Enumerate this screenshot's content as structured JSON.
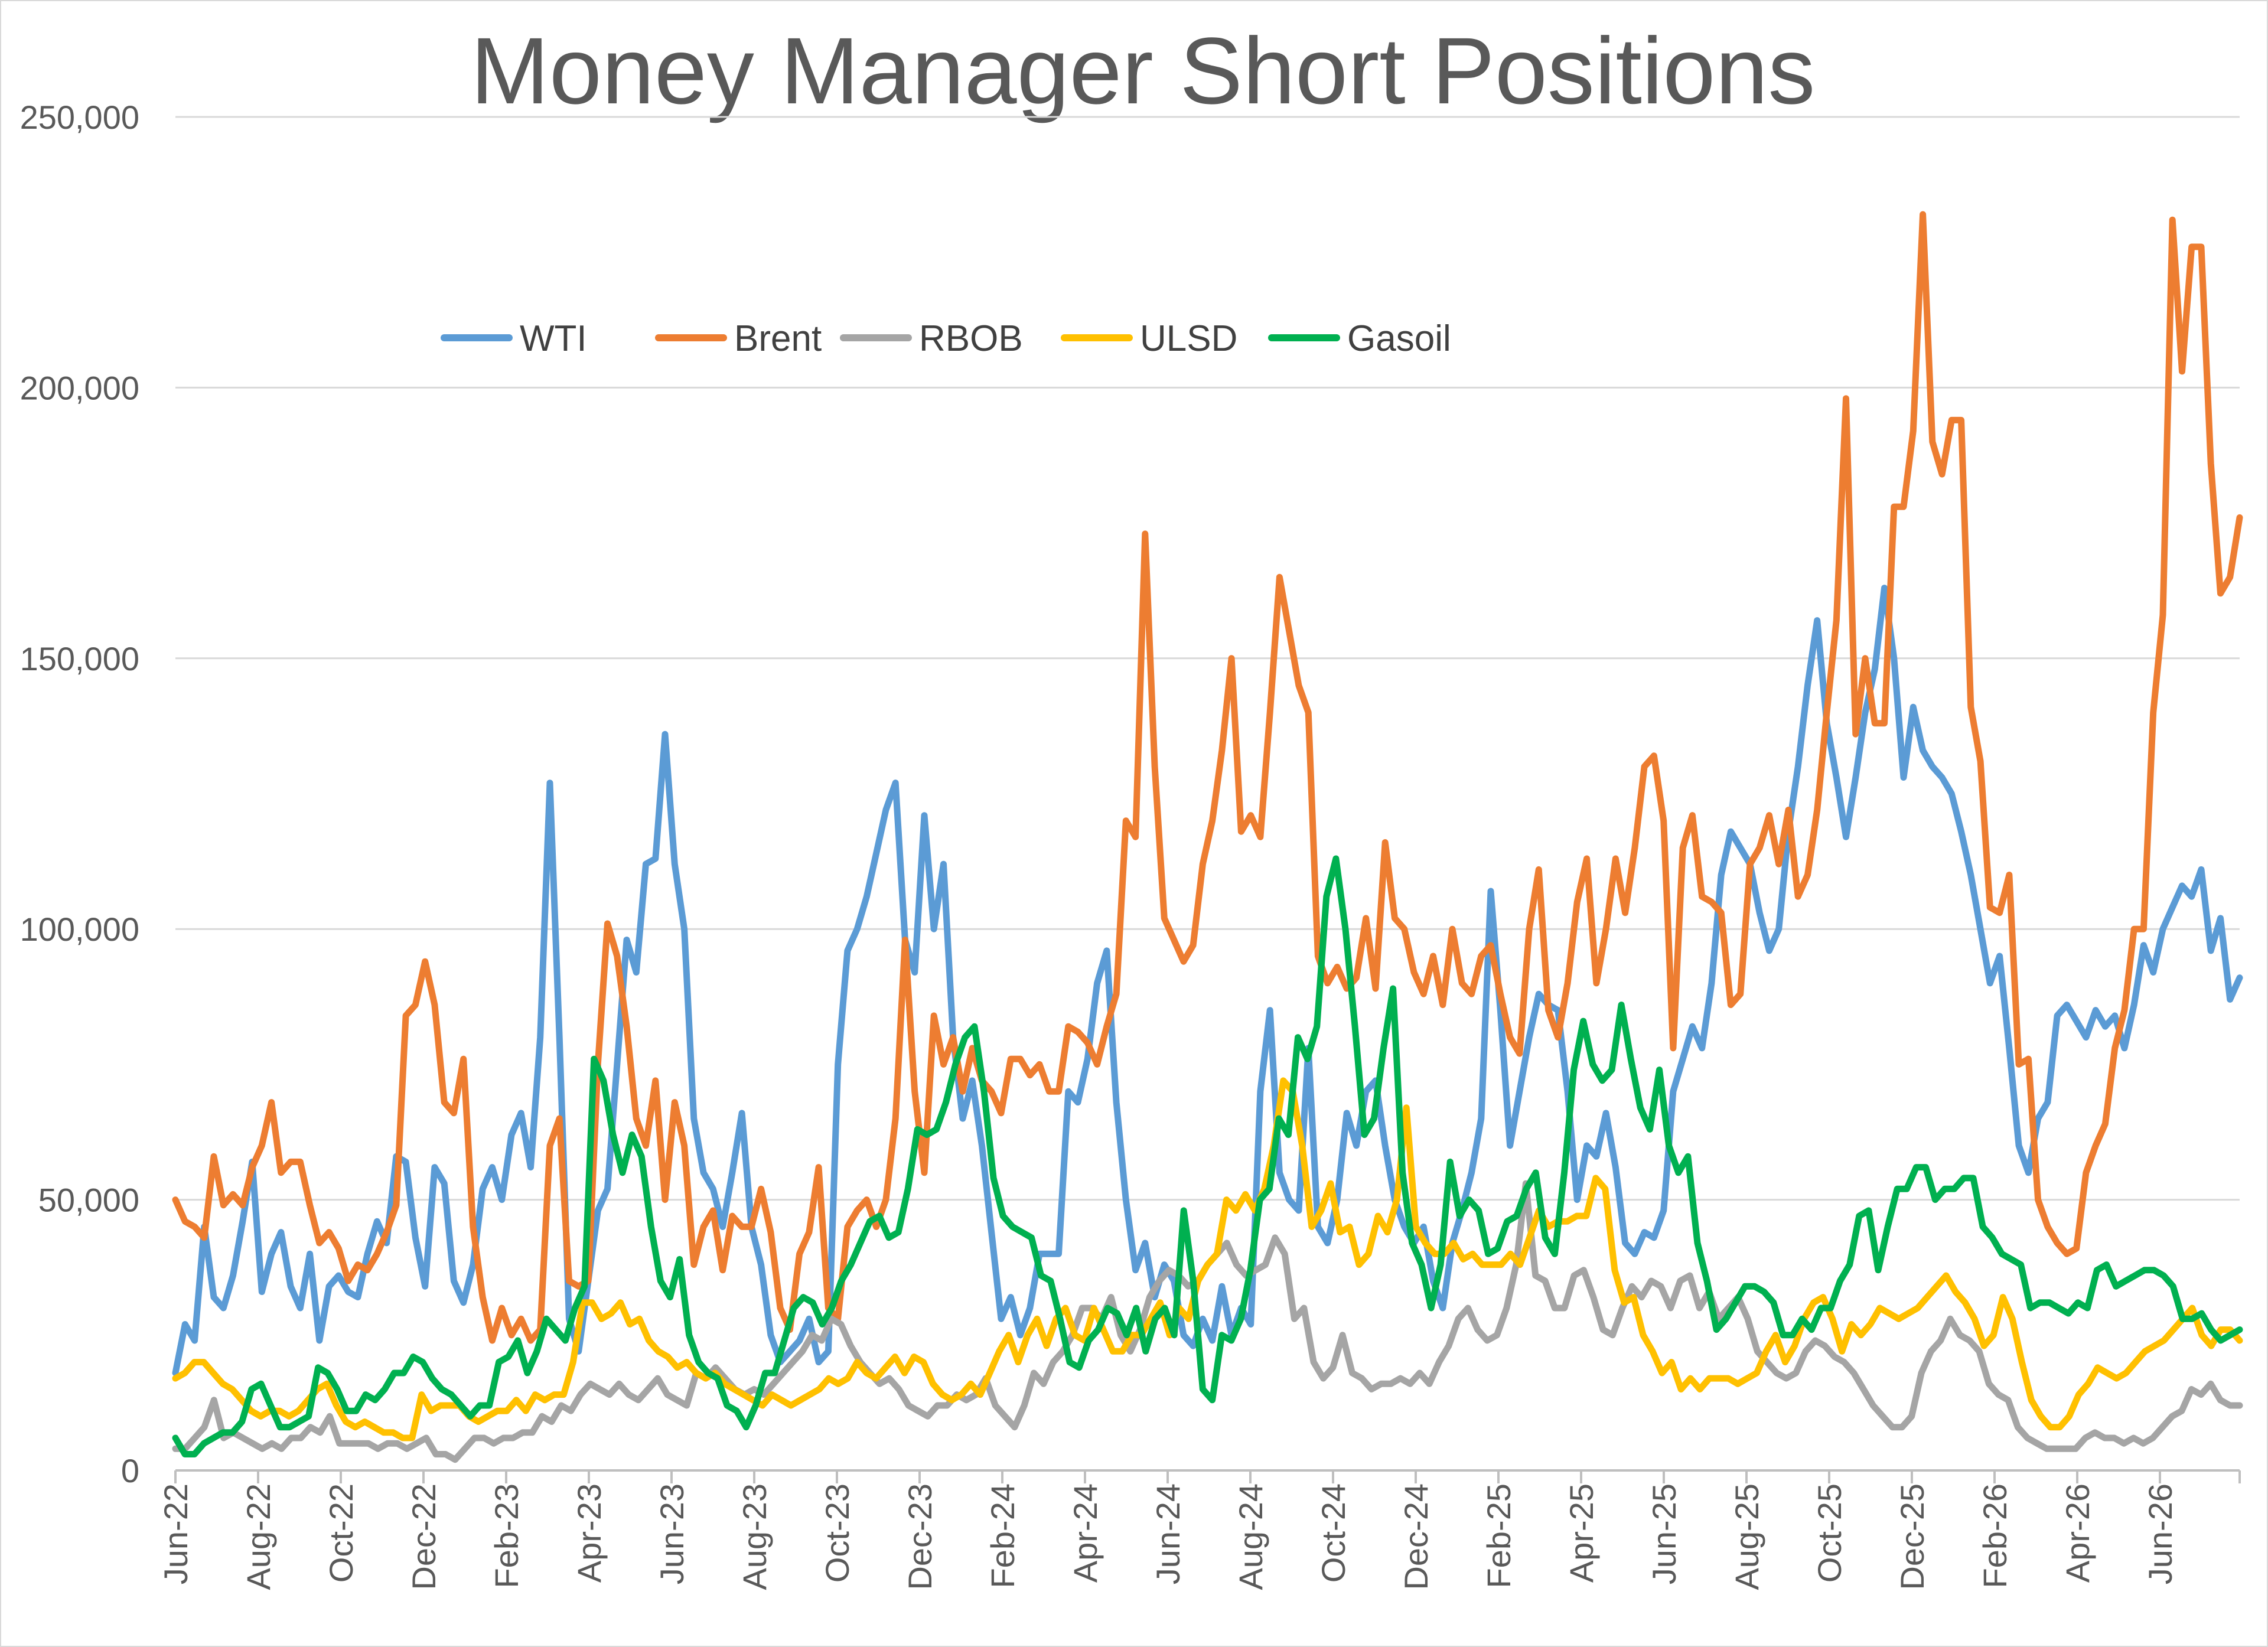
{
  "chart_data": {
    "type": "line",
    "title": "Money Manager Short Positions",
    "xlabel": "",
    "ylabel": "",
    "ylim": [
      0,
      250000
    ],
    "yticks": [
      0,
      50000,
      100000,
      150000,
      200000,
      250000
    ],
    "ytick_labels": [
      "0",
      "50,000",
      "100,000",
      "150,000",
      "200,000",
      "250,000"
    ],
    "x_range": [
      "2022-06",
      "2026-08"
    ],
    "x_tick_labels": [
      "Jun-22",
      "Aug-22",
      "Oct-22",
      "Dec-22",
      "Feb-23",
      "Apr-23",
      "Jun-23",
      "Aug-23",
      "Oct-23",
      "Dec-23",
      "Feb-24",
      "Apr-24",
      "Jun-24",
      "Aug-24",
      "Oct-24",
      "Dec-24",
      "Feb-25",
      "Apr-25",
      "Jun-25",
      "Aug-25",
      "Oct-25",
      "Dec-25",
      "Feb-26",
      "Apr-26",
      "Jun-26"
    ],
    "grid": true,
    "legend_position": "top-left",
    "series": [
      {
        "name": "WTI",
        "color": "#5b9bd5",
        "values": [
          18000,
          27000,
          24000,
          45000,
          32000,
          30000,
          36000,
          46000,
          57000,
          33000,
          40000,
          44000,
          34000,
          30000,
          40000,
          24000,
          34000,
          36000,
          33000,
          32000,
          40000,
          46000,
          42000,
          58000,
          57000,
          43000,
          34000,
          56000,
          53000,
          35000,
          31000,
          38000,
          52000,
          56000,
          50000,
          62000,
          66000,
          56000,
          80000,
          127000,
          80000,
          28000,
          22000,
          35000,
          48000,
          52000,
          75000,
          98000,
          92000,
          112000,
          113000,
          136000,
          112000,
          100000,
          65000,
          55000,
          52000,
          45000,
          55000,
          66000,
          45000,
          38000,
          25000,
          20000,
          22000,
          24000,
          28000,
          20000,
          22000,
          75000,
          96000,
          100000,
          106000,
          114000,
          122000,
          127000,
          98000,
          92000,
          121000,
          100000,
          112000,
          80000,
          65000,
          72000,
          60000,
          44000,
          28000,
          32000,
          25000,
          30000,
          40000,
          40000,
          40000,
          70000,
          68000,
          76000,
          90000,
          96000,
          68000,
          50000,
          37000,
          42000,
          32000,
          38000,
          35000,
          25000,
          23000,
          28000,
          24000,
          34000,
          25000,
          30000,
          27000,
          70000,
          85000,
          55000,
          50000,
          48000,
          78000,
          45000,
          42000,
          50000,
          66000,
          60000,
          70000,
          72000,
          60000,
          50000,
          45000,
          42000,
          45000,
          35000,
          30000,
          42000,
          48000,
          55000,
          65000,
          107000,
          85000,
          60000,
          70000,
          80000,
          88000,
          86000,
          85000,
          70000,
          50000,
          60000,
          58000,
          66000,
          56000,
          42000,
          40000,
          44000,
          43000,
          48000,
          70000,
          76000,
          82000,
          78000,
          90000,
          110000,
          118000,
          115000,
          112000,
          103000,
          96000,
          100000,
          118000,
          130000,
          145000,
          157000,
          138000,
          128000,
          117000,
          128000,
          140000,
          148000,
          163000,
          150000,
          128000,
          141000,
          133000,
          130000,
          128000,
          125000,
          118000,
          110000,
          100000,
          90000,
          95000,
          78000,
          60000,
          55000,
          65000,
          68000,
          84000,
          86000,
          83000,
          80000,
          85000,
          82000,
          84000,
          78000,
          86000,
          97000,
          92000,
          100000,
          104000,
          108000,
          106000,
          111000,
          96000,
          102000,
          87000,
          91000
        ]
      },
      {
        "name": "Brent",
        "color": "#ed7d31",
        "values": [
          50000,
          46000,
          45000,
          43000,
          58000,
          49000,
          51000,
          49000,
          56000,
          60000,
          68000,
          55000,
          57000,
          57000,
          49000,
          42000,
          44000,
          41000,
          35000,
          38000,
          37000,
          40000,
          44000,
          49000,
          84000,
          86000,
          94000,
          86000,
          68000,
          66000,
          76000,
          45000,
          32000,
          24000,
          30000,
          25000,
          28000,
          24000,
          26000,
          60000,
          65000,
          35000,
          34000,
          35000,
          75000,
          101000,
          95000,
          82000,
          65000,
          60000,
          72000,
          50000,
          68000,
          60000,
          38000,
          45000,
          48000,
          37000,
          47000,
          45000,
          45000,
          52000,
          44000,
          30000,
          26000,
          40000,
          44000,
          56000,
          30000,
          28000,
          45000,
          48000,
          50000,
          45000,
          50000,
          65000,
          98000,
          70000,
          55000,
          84000,
          75000,
          80000,
          70000,
          78000,
          72000,
          70000,
          66000,
          76000,
          76000,
          73000,
          75000,
          70000,
          70000,
          82000,
          81000,
          79000,
          75000,
          82000,
          88000,
          120000,
          117000,
          173000,
          130000,
          102000,
          98000,
          94000,
          97000,
          112000,
          120000,
          133000,
          150000,
          118000,
          121000,
          117000,
          140000,
          165000,
          155000,
          145000,
          140000,
          95000,
          90000,
          93000,
          89000,
          91000,
          102000,
          89000,
          116000,
          102000,
          100000,
          92000,
          88000,
          95000,
          86000,
          100000,
          90000,
          88000,
          95000,
          97000,
          88000,
          80000,
          77000,
          100000,
          111000,
          85000,
          80000,
          90000,
          105000,
          113000,
          90000,
          100000,
          113000,
          103000,
          115000,
          130000,
          132000,
          120000,
          78000,
          115000,
          121000,
          106000,
          105000,
          103000,
          86000,
          88000,
          112000,
          115000,
          121000,
          112000,
          122000,
          106000,
          110000,
          122000,
          140000,
          157000,
          198000,
          136000,
          150000,
          138000,
          138000,
          178000,
          178000,
          192000,
          232000,
          190000,
          184000,
          194000,
          194000,
          141000,
          131000,
          104000,
          103000,
          110000,
          75000,
          76000,
          50000,
          45000,
          42000,
          40000,
          41000,
          55000,
          60000,
          64000,
          78000,
          85000,
          100000,
          100000,
          140000,
          158000,
          231000,
          203000,
          226000,
          226000,
          186000,
          162000,
          165000,
          176000
        ]
      },
      {
        "name": "RBOB",
        "color": "#a5a5a5",
        "values": [
          4000,
          4000,
          6000,
          8000,
          13000,
          6000,
          7000,
          6000,
          5000,
          4000,
          5000,
          4000,
          6000,
          6000,
          8000,
          7000,
          10000,
          5000,
          5000,
          5000,
          5000,
          4000,
          5000,
          5000,
          4000,
          5000,
          6000,
          3000,
          3000,
          2000,
          4000,
          6000,
          6000,
          5000,
          6000,
          6000,
          7000,
          7000,
          10000,
          9000,
          12000,
          11000,
          14000,
          16000,
          15000,
          14000,
          16000,
          14000,
          13000,
          15000,
          17000,
          14000,
          13000,
          12000,
          18000,
          17000,
          19000,
          17000,
          15000,
          14000,
          15000,
          14000,
          16000,
          18000,
          20000,
          22000,
          25000,
          24000,
          28000,
          27000,
          23000,
          20000,
          18000,
          16000,
          17000,
          15000,
          12000,
          11000,
          10000,
          12000,
          12000,
          14000,
          13000,
          14000,
          17000,
          12000,
          10000,
          8000,
          12000,
          18000,
          16000,
          20000,
          22000,
          25000,
          30000,
          30000,
          28000,
          32000,
          25000,
          22000,
          26000,
          32000,
          35000,
          37000,
          36000,
          34000,
          35000,
          38000,
          40000,
          42000,
          38000,
          36000,
          37000,
          38000,
          43000,
          40000,
          28000,
          30000,
          20000,
          17000,
          19000,
          25000,
          18000,
          17000,
          15000,
          16000,
          16000,
          17000,
          16000,
          18000,
          16000,
          20000,
          23000,
          28000,
          30000,
          26000,
          24000,
          25000,
          30000,
          38000,
          53000,
          36000,
          35000,
          30000,
          30000,
          36000,
          37000,
          32000,
          26000,
          25000,
          30000,
          34000,
          32000,
          35000,
          34000,
          30000,
          35000,
          36000,
          30000,
          33000,
          28000,
          30000,
          32000,
          28000,
          22000,
          20000,
          18000,
          17000,
          18000,
          22000,
          24000,
          23000,
          21000,
          20000,
          18000,
          15000,
          12000,
          10000,
          8000,
          8000,
          10000,
          18000,
          22000,
          24000,
          28000,
          25000,
          24000,
          22000,
          16000,
          14000,
          13000,
          8000,
          6000,
          5000,
          4000,
          4000,
          4000,
          4000,
          6000,
          7000,
          6000,
          6000,
          5000,
          6000,
          5000,
          6000,
          8000,
          10000,
          11000,
          15000,
          14000,
          16000,
          13000,
          12000,
          12000
        ]
      },
      {
        "name": "ULSD",
        "color": "#ffc000",
        "values": [
          17000,
          18000,
          20000,
          20000,
          18000,
          16000,
          15000,
          13000,
          11000,
          10000,
          11000,
          11000,
          10000,
          11000,
          13000,
          15000,
          16000,
          12000,
          9000,
          8000,
          9000,
          8000,
          7000,
          7000,
          6000,
          6000,
          14000,
          11000,
          12000,
          12000,
          12000,
          10000,
          9000,
          10000,
          11000,
          11000,
          13000,
          11000,
          14000,
          13000,
          14000,
          14000,
          20000,
          31000,
          31000,
          28000,
          29000,
          31000,
          27000,
          28000,
          24000,
          22000,
          21000,
          19000,
          20000,
          18000,
          17000,
          18000,
          16000,
          15000,
          14000,
          13000,
          12000,
          14000,
          13000,
          12000,
          13000,
          14000,
          15000,
          17000,
          16000,
          17000,
          20000,
          18000,
          17000,
          19000,
          21000,
          18000,
          21000,
          20000,
          16000,
          14000,
          13000,
          14000,
          16000,
          14000,
          18000,
          22000,
          25000,
          20000,
          25000,
          28000,
          23000,
          28000,
          30000,
          25000,
          24000,
          30000,
          26000,
          22000,
          22000,
          25000,
          25000,
          28000,
          31000,
          25000,
          30000,
          28000,
          35000,
          38000,
          40000,
          50000,
          48000,
          51000,
          48000,
          52000,
          60000,
          72000,
          70000,
          60000,
          45000,
          48000,
          53000,
          44000,
          45000,
          38000,
          40000,
          47000,
          44000,
          50000,
          67000,
          45000,
          42000,
          40000,
          40000,
          42000,
          39000,
          40000,
          38000,
          38000,
          38000,
          40000,
          38000,
          43000,
          48000,
          45000,
          46000,
          46000,
          47000,
          47000,
          54000,
          52000,
          37000,
          31000,
          32000,
          25000,
          22000,
          18000,
          20000,
          15000,
          17000,
          15000,
          17000,
          17000,
          17000,
          16000,
          17000,
          18000,
          22000,
          25000,
          20000,
          23000,
          28000,
          31000,
          32000,
          28000,
          22000,
          27000,
          25000,
          27000,
          30000,
          29000,
          28000,
          29000,
          30000,
          32000,
          34000,
          36000,
          33000,
          31000,
          28000,
          23000,
          25000,
          32000,
          28000,
          20000,
          13000,
          10000,
          8000,
          8000,
          10000,
          14000,
          16000,
          19000,
          18000,
          17000,
          18000,
          20000,
          22000,
          23000,
          24000,
          26000,
          28000,
          30000,
          25000,
          23000,
          26000,
          26000,
          24000
        ]
      },
      {
        "name": "Gasoil",
        "color": "#00b050",
        "values": [
          6000,
          3000,
          3000,
          5000,
          6000,
          7000,
          7000,
          9000,
          15000,
          16000,
          12000,
          8000,
          8000,
          9000,
          10000,
          19000,
          18000,
          15000,
          11000,
          11000,
          14000,
          13000,
          15000,
          18000,
          18000,
          21000,
          20000,
          17000,
          15000,
          14000,
          12000,
          10000,
          12000,
          12000,
          20000,
          21000,
          24000,
          18000,
          22000,
          28000,
          26000,
          24000,
          30000,
          34000,
          76000,
          72000,
          62000,
          55000,
          62000,
          58000,
          45000,
          35000,
          32000,
          39000,
          25000,
          20000,
          18000,
          17000,
          12000,
          11000,
          8000,
          12000,
          18000,
          18000,
          24000,
          30000,
          32000,
          31000,
          27000,
          30000,
          35000,
          38000,
          42000,
          46000,
          47000,
          43000,
          44000,
          52000,
          63000,
          62000,
          63000,
          68000,
          75000,
          80000,
          82000,
          70000,
          54000,
          47000,
          45000,
          44000,
          43000,
          36000,
          35000,
          28000,
          20000,
          19000,
          24000,
          26000,
          30000,
          29000,
          25000,
          30000,
          22000,
          28000,
          30000,
          25000,
          48000,
          35000,
          15000,
          13000,
          25000,
          24000,
          28000,
          37000,
          50000,
          52000,
          65000,
          62000,
          80000,
          76000,
          82000,
          106000,
          113000,
          100000,
          82000,
          62000,
          65000,
          78000,
          89000,
          55000,
          42000,
          38000,
          30000,
          38000,
          57000,
          47000,
          50000,
          48000,
          40000,
          41000,
          46000,
          47000,
          52000,
          55000,
          43000,
          40000,
          55000,
          74000,
          83000,
          75000,
          72000,
          74000,
          86000,
          76000,
          67000,
          63000,
          74000,
          60000,
          55000,
          58000,
          42000,
          35000,
          26000,
          28000,
          31000,
          34000,
          34000,
          33000,
          31000,
          25000,
          25000,
          28000,
          26000,
          30000,
          30000,
          35000,
          38000,
          47000,
          48000,
          37000,
          45000,
          52000,
          52000,
          56000,
          56000,
          50000,
          52000,
          52000,
          54000,
          54000,
          45000,
          43000,
          40000,
          39000,
          38000,
          30000,
          31000,
          31000,
          30000,
          29000,
          31000,
          30000,
          37000,
          38000,
          34000,
          35000,
          36000,
          37000,
          37000,
          36000,
          34000,
          28000,
          28000,
          29000,
          26000,
          24000,
          25000,
          26000
        ]
      }
    ]
  }
}
